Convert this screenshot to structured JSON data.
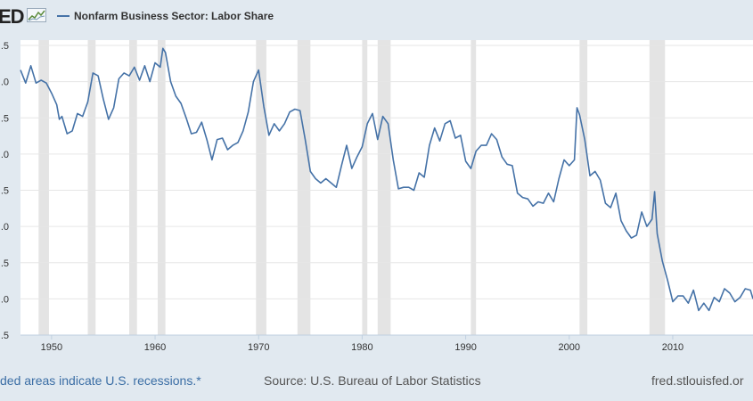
{
  "header": {
    "logo_text": "ED",
    "legend_label": "Nonfarm Business Sector: Labor Share",
    "legend_color": "#4572a7"
  },
  "footer": {
    "note": "ded areas indicate U.S. recessions.*",
    "source": "Source: U.S. Bureau of Labor Statistics",
    "site": "fred.stlouisfed.or"
  },
  "chart_data": {
    "type": "line",
    "title": "Nonfarm Business Sector: Labor Share",
    "xlabel": "",
    "ylabel": "",
    "xlim": [
      1947.0,
      2017.75
    ],
    "ylim": [
      92.5,
      112.5
    ],
    "y_tick_labels": [
      ".5",
      ".0",
      ".5",
      ".0",
      ".5",
      ".0",
      ".5",
      ".0",
      ".5"
    ],
    "x_ticks": [
      1950,
      1960,
      1970,
      1980,
      1990,
      2000,
      2010
    ],
    "grid": true,
    "line_color": "#4572a7",
    "recession_color": "#e4e4e4",
    "recessions": [
      [
        1948.75,
        1949.75
      ],
      [
        1953.5,
        1954.25
      ],
      [
        1957.5,
        1958.25
      ],
      [
        1960.25,
        1961.0
      ],
      [
        1969.75,
        1970.75
      ],
      [
        1973.75,
        1975.0
      ],
      [
        1980.0,
        1980.5
      ],
      [
        1981.5,
        1982.75
      ],
      [
        1990.5,
        1991.0
      ],
      [
        2001.0,
        2001.75
      ],
      [
        2007.75,
        2009.25
      ]
    ],
    "series": [
      {
        "name": "Nonfarm Business Sector: Labor Share",
        "x": [
          1947.0,
          1947.5,
          1948.0,
          1948.5,
          1949.0,
          1949.5,
          1950.0,
          1950.5,
          1950.75,
          1951.0,
          1951.5,
          1952.0,
          1952.5,
          1953.0,
          1953.5,
          1954.0,
          1954.5,
          1955.0,
          1955.5,
          1956.0,
          1956.5,
          1957.0,
          1957.5,
          1958.0,
          1958.5,
          1959.0,
          1959.5,
          1960.0,
          1960.5,
          1960.75,
          1961.0,
          1961.5,
          1962.0,
          1962.5,
          1963.0,
          1963.5,
          1964.0,
          1964.5,
          1965.0,
          1965.5,
          1966.0,
          1966.5,
          1967.0,
          1967.5,
          1968.0,
          1968.5,
          1969.0,
          1969.5,
          1970.0,
          1970.5,
          1971.0,
          1971.5,
          1972.0,
          1972.5,
          1973.0,
          1973.5,
          1974.0,
          1974.5,
          1975.0,
          1975.5,
          1976.0,
          1976.5,
          1977.0,
          1977.5,
          1978.0,
          1978.5,
          1979.0,
          1979.5,
          1980.0,
          1980.5,
          1981.0,
          1981.5,
          1982.0,
          1982.5,
          1983.0,
          1983.5,
          1984.0,
          1984.5,
          1985.0,
          1985.5,
          1986.0,
          1986.5,
          1987.0,
          1987.5,
          1988.0,
          1988.5,
          1989.0,
          1989.5,
          1990.0,
          1990.5,
          1991.0,
          1991.5,
          1992.0,
          1992.5,
          1993.0,
          1993.5,
          1994.0,
          1994.5,
          1995.0,
          1995.5,
          1996.0,
          1996.5,
          1997.0,
          1997.5,
          1998.0,
          1998.5,
          1999.0,
          1999.5,
          2000.0,
          2000.25,
          2000.5,
          2000.75,
          2001.0,
          2001.5,
          2002.0,
          2002.5,
          2003.0,
          2003.5,
          2004.0,
          2004.5,
          2005.0,
          2005.5,
          2006.0,
          2006.5,
          2007.0,
          2007.5,
          2008.0,
          2008.25,
          2008.5,
          2009.0,
          2009.5,
          2010.0,
          2010.5,
          2011.0,
          2011.5,
          2012.0,
          2012.5,
          2013.0,
          2013.5,
          2014.0,
          2014.5,
          2015.0,
          2015.5,
          2016.0,
          2016.5,
          2017.0,
          2017.5,
          2017.75
        ],
        "values": [
          110.8,
          109.9,
          111.1,
          109.9,
          110.1,
          109.9,
          109.2,
          108.4,
          107.4,
          107.6,
          106.4,
          106.6,
          107.8,
          107.6,
          108.6,
          110.6,
          110.4,
          108.8,
          107.4,
          108.2,
          110.2,
          110.6,
          110.4,
          111.0,
          110.1,
          111.1,
          110.0,
          111.3,
          111.0,
          112.3,
          112.0,
          110.0,
          109.0,
          108.5,
          107.5,
          106.4,
          106.5,
          107.2,
          106.0,
          104.6,
          106.0,
          106.1,
          105.3,
          105.6,
          105.8,
          106.6,
          107.9,
          110.0,
          110.8,
          108.3,
          106.3,
          107.1,
          106.6,
          107.1,
          107.9,
          108.1,
          108.0,
          106.0,
          103.8,
          103.3,
          103.0,
          103.3,
          103.0,
          102.7,
          104.2,
          105.6,
          104.0,
          104.8,
          105.5,
          107.1,
          107.8,
          106.0,
          107.6,
          107.1,
          104.6,
          102.6,
          102.7,
          102.7,
          102.5,
          103.7,
          103.4,
          105.6,
          106.8,
          105.9,
          107.1,
          107.3,
          106.1,
          106.3,
          104.5,
          104.0,
          105.2,
          105.6,
          105.6,
          106.4,
          106.0,
          104.8,
          104.3,
          104.2,
          102.3,
          102.0,
          101.9,
          101.4,
          101.7,
          101.6,
          102.3,
          101.7,
          103.3,
          104.6,
          104.2,
          104.4,
          104.6,
          108.2,
          107.7,
          106.0,
          103.5,
          103.8,
          103.2,
          101.6,
          101.3,
          102.3,
          100.4,
          99.7,
          99.2,
          99.4,
          101.0,
          100.0,
          100.5,
          102.4,
          99.5,
          97.6,
          96.3,
          94.8,
          95.2,
          95.2,
          94.7,
          95.6,
          94.2,
          94.7,
          94.2,
          95.1,
          94.8,
          95.7,
          95.4,
          94.8,
          95.1,
          95.7,
          95.6,
          95.0
        ]
      }
    ]
  }
}
